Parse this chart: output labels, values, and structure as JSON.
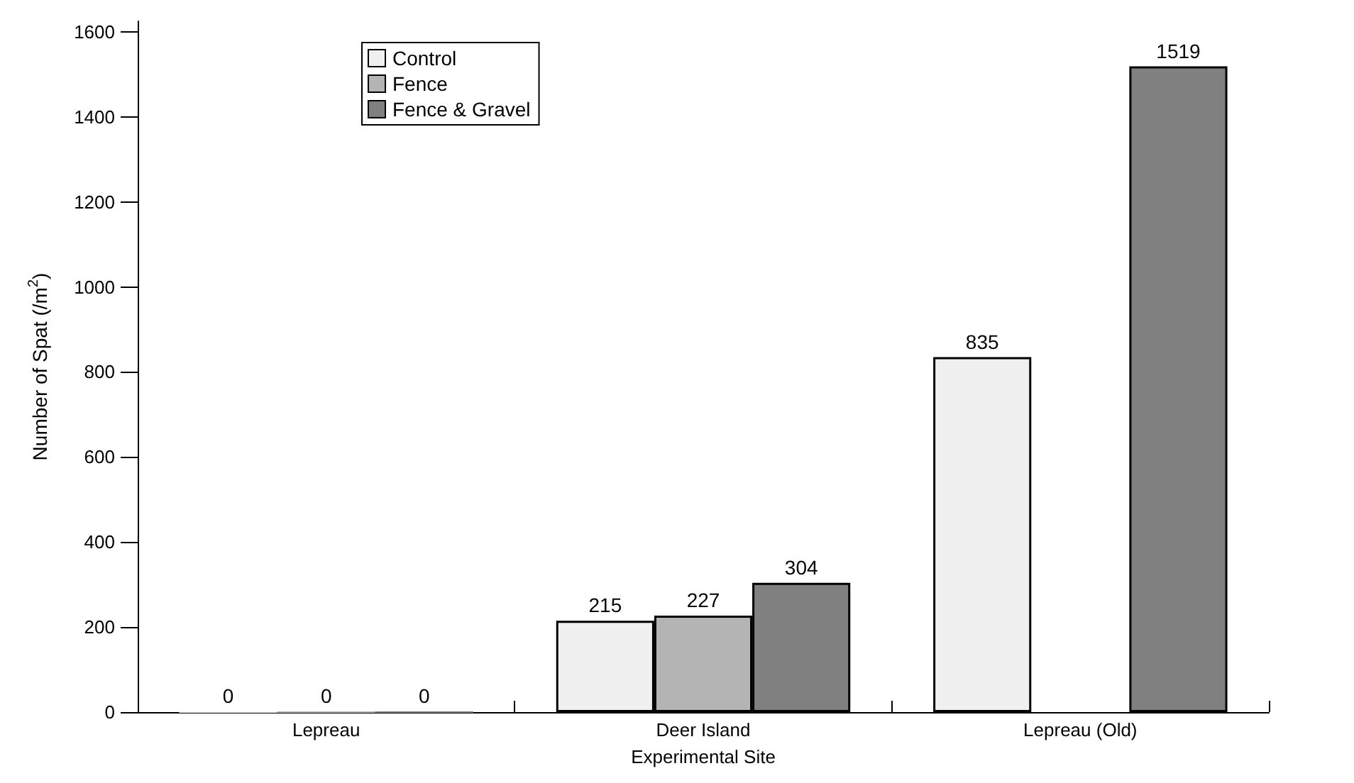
{
  "chart_data": {
    "type": "bar",
    "categories": [
      "Lepreau",
      "Deer Island",
      "Lepreau (Old)"
    ],
    "xlabel": "Experimental Site",
    "ylabel": "Number of Spat (/m$^{2}$)",
    "series": [
      {
        "name": "Control",
        "color": "#f0f0f0",
        "values": [
          0,
          215,
          835
        ]
      },
      {
        "name": "Fence",
        "color": "#b4b4b4",
        "values": [
          0,
          227,
          null
        ]
      },
      {
        "name": "Fence & Gravel",
        "color": "#808080",
        "values": [
          0,
          304,
          1519
        ]
      }
    ],
    "ylim": [
      0,
      1625
    ],
    "yticks": [
      0,
      200,
      400,
      600,
      800,
      1000,
      1200,
      1400,
      1600
    ],
    "grid": false,
    "legend": "top left",
    "data_labels": true
  }
}
